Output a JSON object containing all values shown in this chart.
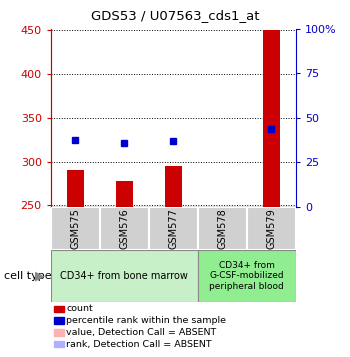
{
  "title": "GDS53 / U07563_cds1_at",
  "samples": [
    "GSM575",
    "GSM576",
    "GSM577",
    "GSM578",
    "GSM579"
  ],
  "bar_values": [
    290,
    278,
    295,
    0,
    450
  ],
  "bar_colors": [
    "#cc0000",
    "#cc0000",
    "#cc0000",
    null,
    "#cc0000"
  ],
  "dot_values": [
    325,
    321,
    324,
    0,
    337
  ],
  "dot_colors": [
    "#0000cc",
    "#0000cc",
    "#0000cc",
    null,
    "#0000cc"
  ],
  "ylim_left": [
    248,
    452
  ],
  "ylim_right": [
    0,
    100
  ],
  "yticks_left": [
    250,
    300,
    350,
    400,
    450
  ],
  "yticks_right": [
    0,
    25,
    50,
    75,
    100
  ],
  "ytick_labels_right": [
    "0",
    "25",
    "50",
    "75",
    "100%"
  ],
  "group1_label": "CD34+ from bone marrow",
  "group2_label": "CD34+ from\nG-CSF-mobilized\nperipheral blood",
  "group1_color": "#c8f0c8",
  "group2_color": "#90ee90",
  "sample_box_color": "#d0d0d0",
  "cell_type_label": "cell type",
  "legend_items": [
    {
      "color": "#cc0000",
      "label": "count"
    },
    {
      "color": "#0000cc",
      "label": "percentile rank within the sample"
    },
    {
      "color": "#ffb0b0",
      "label": "value, Detection Call = ABSENT"
    },
    {
      "color": "#b0b0ff",
      "label": "rank, Detection Call = ABSENT"
    }
  ],
  "grid_color": "black",
  "left_axis_color": "#cc0000",
  "right_axis_color": "#0000cc",
  "bar_width": 0.35
}
